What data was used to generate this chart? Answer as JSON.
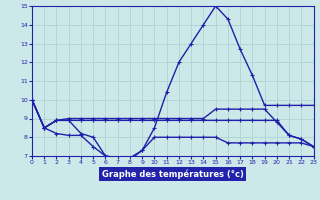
{
  "xlabel": "Graphe des températures (°c)",
  "hours": [
    0,
    1,
    2,
    3,
    4,
    5,
    6,
    7,
    8,
    9,
    10,
    11,
    12,
    13,
    14,
    15,
    16,
    17,
    18,
    19,
    20,
    21,
    22,
    23
  ],
  "line_main": [
    10.0,
    8.5,
    8.9,
    8.9,
    8.2,
    8.0,
    7.0,
    6.9,
    6.8,
    7.3,
    8.5,
    10.4,
    12.0,
    13.0,
    14.0,
    15.0,
    14.3,
    12.7,
    11.3,
    9.7,
    9.7,
    9.7,
    9.7,
    9.7
  ],
  "line_upper": [
    10.0,
    8.5,
    8.9,
    9.0,
    9.0,
    9.0,
    9.0,
    9.0,
    9.0,
    9.0,
    9.0,
    9.0,
    9.0,
    9.0,
    9.0,
    9.5,
    9.5,
    9.5,
    9.5,
    9.5,
    8.8,
    8.1,
    7.9,
    7.5
  ],
  "line_mid": [
    10.0,
    8.5,
    8.9,
    8.9,
    8.9,
    8.9,
    8.9,
    8.9,
    8.9,
    8.9,
    8.9,
    8.9,
    8.9,
    8.9,
    8.9,
    8.9,
    8.9,
    8.9,
    8.9,
    8.9,
    8.9,
    8.1,
    7.9,
    7.5
  ],
  "line_lower": [
    10.0,
    8.5,
    8.2,
    8.1,
    8.1,
    7.5,
    7.0,
    6.9,
    6.9,
    7.3,
    8.0,
    8.0,
    8.0,
    8.0,
    8.0,
    8.0,
    7.7,
    7.7,
    7.7,
    7.7,
    7.7,
    7.7,
    7.7,
    7.5
  ],
  "ylim": [
    7,
    15
  ],
  "xlim": [
    0,
    23
  ],
  "yticks": [
    7,
    8,
    9,
    10,
    11,
    12,
    13,
    14,
    15
  ],
  "xticks": [
    0,
    1,
    2,
    3,
    4,
    5,
    6,
    7,
    8,
    9,
    10,
    11,
    12,
    13,
    14,
    15,
    16,
    17,
    18,
    19,
    20,
    21,
    22,
    23
  ],
  "bg_color": "#cce8e8",
  "grid_color": "#aacece",
  "line_color": "#2020aa",
  "ax_label_bg": "#2222aa"
}
